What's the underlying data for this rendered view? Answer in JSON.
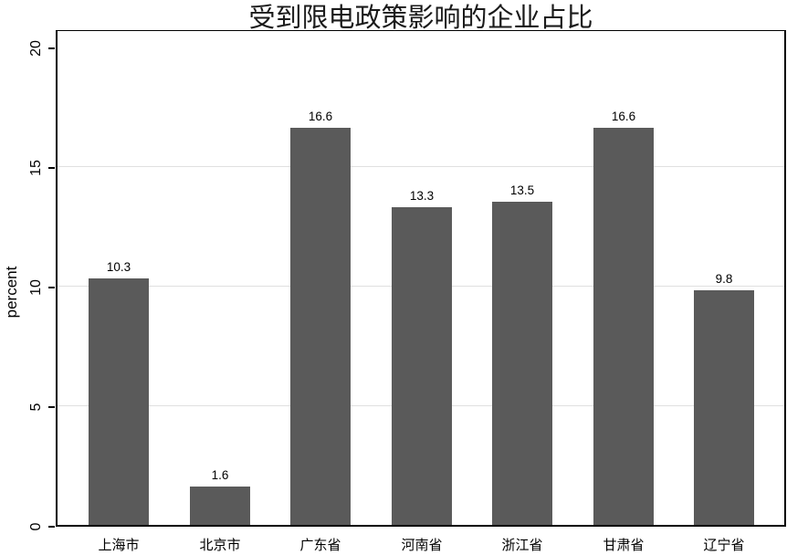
{
  "chart_data": {
    "type": "bar",
    "title": "受到限电政策影响的企业占比",
    "xlabel": "",
    "ylabel": "percent",
    "categories": [
      "上海市",
      "北京市",
      "广东省",
      "河南省",
      "浙江省",
      "甘肃省",
      "辽宁省"
    ],
    "values": [
      10.3,
      1.6,
      16.6,
      13.3,
      13.5,
      16.6,
      9.8
    ],
    "value_labels": [
      "10.3",
      "1.6",
      "16.6",
      "13.3",
      "13.5",
      "16.6",
      "9.8"
    ],
    "ylim": [
      0,
      20.8
    ],
    "yticks": [
      0,
      5,
      10,
      15,
      20
    ],
    "ytick_labels": [
      "0",
      "5",
      "10",
      "15",
      "20"
    ],
    "gridlines_at": [
      5,
      10,
      15
    ],
    "grid": true,
    "legend": "none",
    "bar_color": "#5a5a5a",
    "grid_color": "#e0e0e0",
    "axis_color": "#000000",
    "text_color": "#000000",
    "background_color": "#ffffff"
  }
}
